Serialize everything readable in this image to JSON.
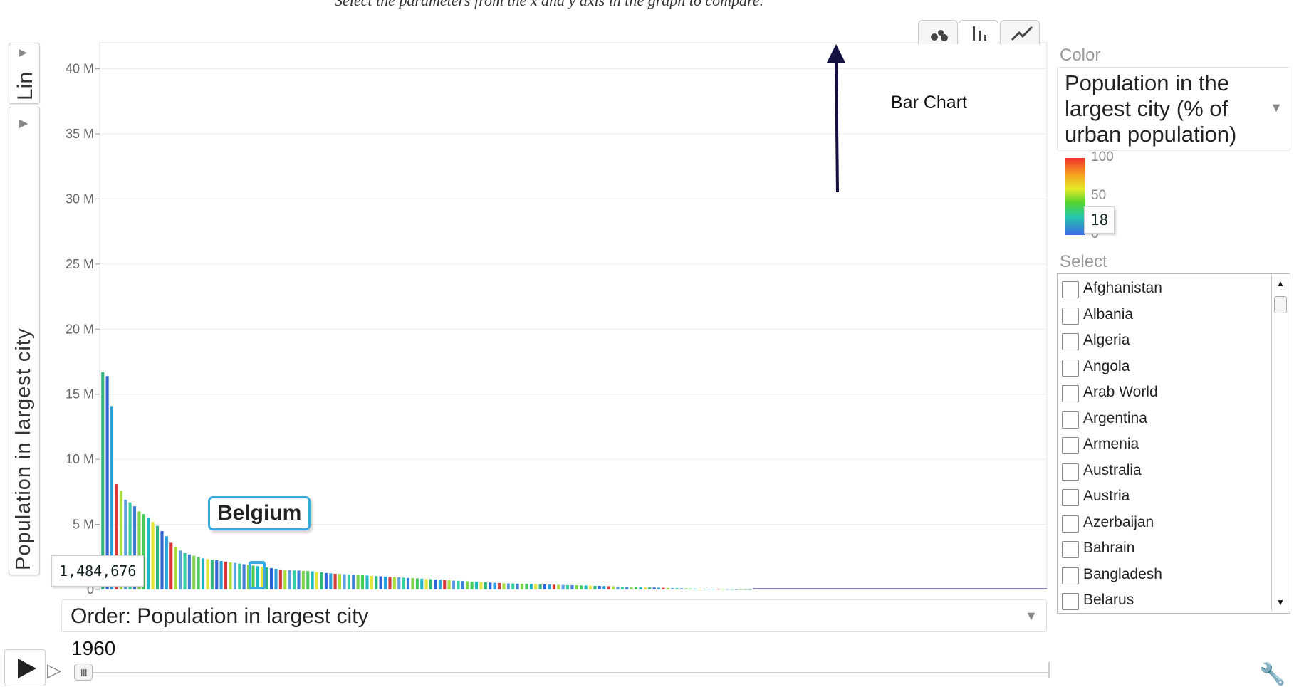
{
  "instruction": "Select the parameters from the x and y axis in the graph to compare.",
  "y_axis": {
    "scale_label": "Lin",
    "title": "Population in largest city"
  },
  "view_buttons": [
    "bubble-chart-icon",
    "bar-chart-icon",
    "line-chart-icon"
  ],
  "annotation": {
    "label": "Bar Chart"
  },
  "highlight": {
    "country": "Belgium",
    "value_label": "1,484,676"
  },
  "order": {
    "label": "Order: Population in largest city"
  },
  "year": "1960",
  "color": {
    "section_label": "Color",
    "selected": "Population in the largest city (% of urban population)",
    "legend_max": "100",
    "legend_mid": "50",
    "legend_min": "0",
    "legend_current": "18"
  },
  "select": {
    "section_label": "Select",
    "countries": [
      "Afghanistan",
      "Albania",
      "Algeria",
      "Angola",
      "Arab World",
      "Argentina",
      "Armenia",
      "Australia",
      "Austria",
      "Azerbaijan",
      "Bahrain",
      "Bangladesh",
      "Belarus"
    ]
  },
  "chart_data": {
    "type": "bar",
    "title": "",
    "xlabel": "Order: Population in largest city",
    "ylabel": "Population in largest city",
    "ylim": [
      0,
      42000000
    ],
    "yticks": [
      "0",
      "5 M",
      "10 M",
      "15 M",
      "20 M",
      "25 M",
      "30 M",
      "35 M",
      "40 M"
    ],
    "year": "1960",
    "highlighted": {
      "category": "Belgium",
      "value": 1484676
    },
    "values_millions": [
      16.7,
      16.4,
      14.1,
      8.1,
      7.6,
      6.9,
      6.7,
      6.4,
      6.0,
      5.8,
      5.5,
      5.2,
      4.9,
      4.5,
      4.1,
      3.6,
      3.3,
      3.0,
      2.8,
      2.7,
      2.6,
      2.5,
      2.4,
      2.35,
      2.3,
      2.25,
      2.2,
      2.15,
      2.1,
      2.05,
      2.0,
      1.95,
      1.9,
      1.85,
      1.8,
      1.75,
      1.7,
      1.65,
      1.6,
      1.55,
      1.52,
      1.5,
      1.48,
      1.46,
      1.44,
      1.42,
      1.4,
      1.36,
      1.32,
      1.28,
      1.25,
      1.22,
      1.2,
      1.18,
      1.16,
      1.14,
      1.12,
      1.1,
      1.08,
      1.06,
      1.04,
      1.02,
      1.0,
      0.98,
      0.96,
      0.94,
      0.92,
      0.9,
      0.88,
      0.86,
      0.84,
      0.82,
      0.8,
      0.78,
      0.76,
      0.74,
      0.72,
      0.7,
      0.68,
      0.66,
      0.64,
      0.62,
      0.6,
      0.58,
      0.56,
      0.54,
      0.52,
      0.5,
      0.49,
      0.48,
      0.47,
      0.46,
      0.45,
      0.44,
      0.43,
      0.42,
      0.41,
      0.4,
      0.39,
      0.38,
      0.37,
      0.36,
      0.35,
      0.34,
      0.33,
      0.32,
      0.31,
      0.3,
      0.29,
      0.28,
      0.27,
      0.26,
      0.25,
      0.24,
      0.23,
      0.22,
      0.21,
      0.2,
      0.19,
      0.18,
      0.17,
      0.16,
      0.15,
      0.14,
      0.13,
      0.12,
      0.11,
      0.1,
      0.09,
      0.08,
      0.07,
      0.06,
      0.05,
      0.045,
      0.04,
      0.035,
      0.03,
      0.025,
      0.02,
      0.018,
      0.015,
      0.012,
      0.01
    ]
  },
  "colors": {
    "bar_palette": [
      "#2fb67c",
      "#3e7fd6",
      "#2a9fd9",
      "#47c95e",
      "#a8dd3c",
      "#e3e639",
      "#35d0a1",
      "#2f63d8",
      "#7fd34a",
      "#d83a3a",
      "#1eb7c6",
      "#5e9fe0"
    ],
    "highlight": "#3aa9e0",
    "annotation_arrow": "#141040"
  }
}
